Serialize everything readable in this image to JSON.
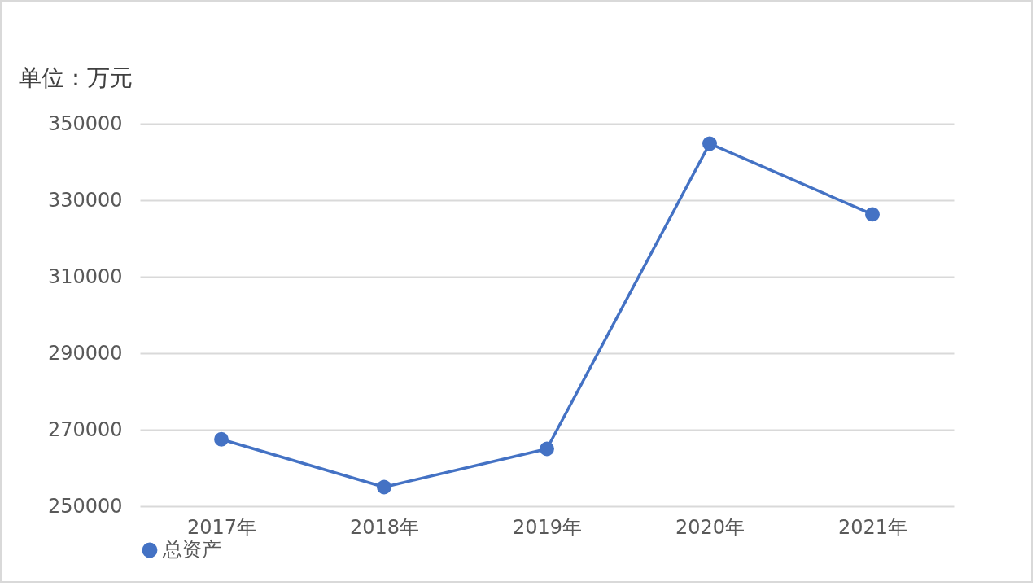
{
  "chart_data": {
    "type": "line",
    "ylabel": "单位：万元",
    "categories": [
      "2017年",
      "2018年",
      "2019年",
      "2020年",
      "2021年"
    ],
    "series": [
      {
        "name": "总资产",
        "color": "#4472c4",
        "values": [
          267500,
          255000,
          265000,
          344800,
          326300
        ]
      }
    ],
    "ylim": [
      250000,
      350000
    ],
    "yticks": [
      250000,
      270000,
      290000,
      310000,
      330000,
      350000
    ],
    "grid": "y",
    "legend": "bottom",
    "marker": "circle",
    "line_style": "solid"
  }
}
